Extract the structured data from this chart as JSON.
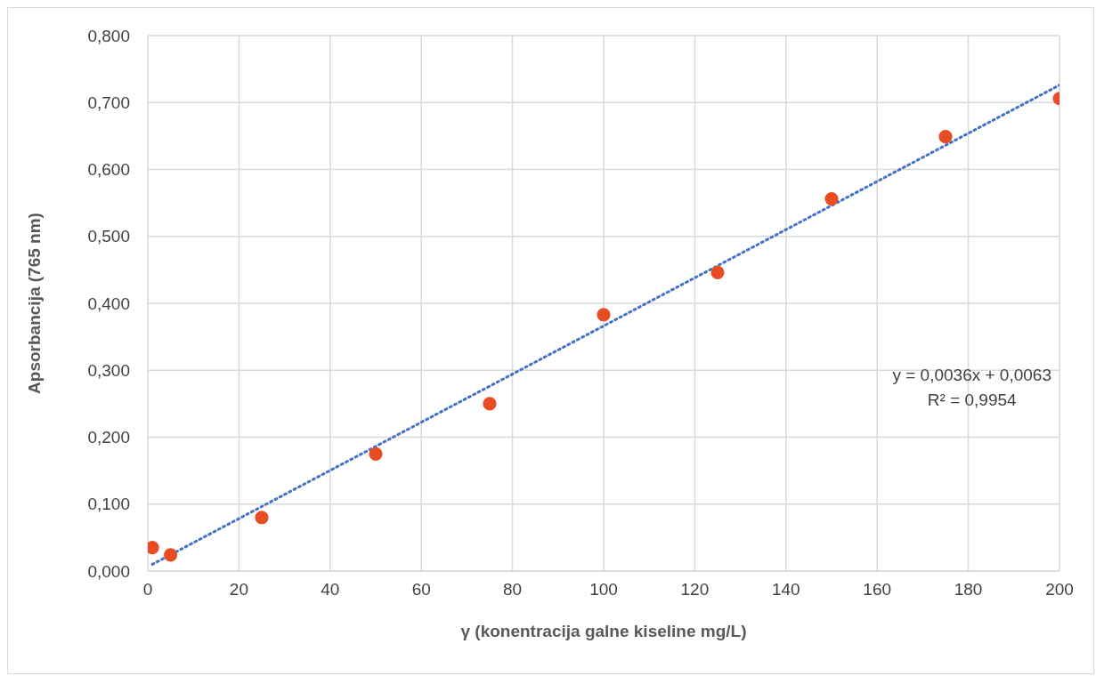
{
  "chart_data": {
    "type": "scatter",
    "xlabel": "γ (konentracija galne kiseline mg/L)",
    "ylabel": "Apsorbancija (765 nm)",
    "annotations": [
      "y = 0,0036x + 0,0063",
      "R² = 0,9954"
    ],
    "series": [
      {
        "color": "#e84c22",
        "marker": "circle",
        "x": [
          1,
          5,
          25,
          50,
          75,
          100,
          125,
          150,
          175,
          200
        ],
        "values": [
          0.035,
          0.024,
          0.08,
          0.175,
          0.25,
          0.383,
          0.446,
          0.556,
          0.649,
          0.706
        ]
      },
      {
        "type": "line",
        "color": "#4472c4",
        "marker": "none",
        "line_style": "dotted",
        "x": [
          1,
          200
        ],
        "values": [
          0.01,
          0.726
        ]
      }
    ],
    "xlim": [
      0,
      200
    ],
    "xticks": [
      0,
      20,
      40,
      60,
      80,
      100,
      120,
      140,
      160,
      180,
      200
    ],
    "ylim": [
      0,
      0.8
    ],
    "yticks": [
      {
        "value": 0,
        "label": "0,000"
      },
      {
        "value": 0.1,
        "label": "0,100"
      },
      {
        "value": 0.2,
        "label": "0,200"
      },
      {
        "value": 0.3,
        "label": "0,300"
      },
      {
        "value": 0.4,
        "label": "0,400"
      },
      {
        "value": 0.5,
        "label": "0,500"
      },
      {
        "value": 0.6,
        "label": "0,600"
      },
      {
        "value": 0.7,
        "label": "0,700"
      },
      {
        "value": 0.8,
        "label": "0,800"
      }
    ],
    "grid": true,
    "legend": false
  }
}
